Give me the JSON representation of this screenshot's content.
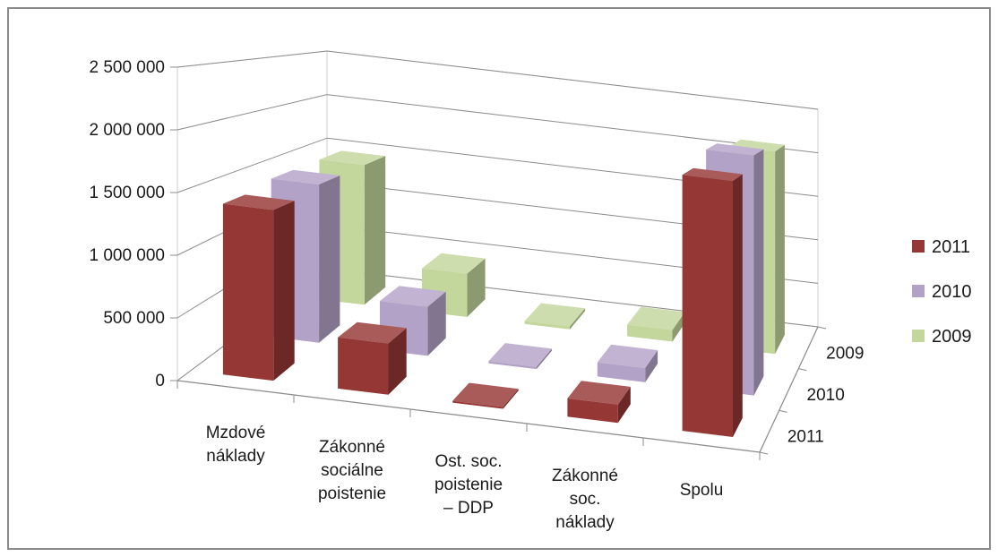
{
  "chart_data": {
    "type": "bar",
    "subtype": "3d-clustered",
    "title": "",
    "xlabel": "",
    "ylabel": "",
    "ylim": [
      0,
      2500000
    ],
    "yticks": [
      "0",
      "500 000",
      "1 000 000",
      "1 500 000",
      "2 000 000",
      "2 500 000"
    ],
    "grid": true,
    "legend_position": "right",
    "categories": [
      [
        "Mzdové",
        "náklady"
      ],
      [
        "Zákonné",
        "sociálne",
        "poistenie"
      ],
      [
        "Ost. soc.",
        "poistenie",
        "– DDP"
      ],
      [
        "Zákonné",
        "soc.",
        "náklady"
      ],
      [
        "Spolu"
      ]
    ],
    "depth_labels": [
      "2009",
      "2010",
      "2011"
    ],
    "series": [
      {
        "name": "2011",
        "color": "#953735",
        "values": [
          1400000,
          420000,
          15000,
          150000,
          2100000
        ]
      },
      {
        "name": "2010",
        "color": "#b3a2c7",
        "values": [
          1450000,
          450000,
          20000,
          130000,
          2200000
        ]
      },
      {
        "name": "2009",
        "color": "#c3d69b",
        "values": [
          1450000,
          450000,
          30000,
          120000,
          2100000
        ]
      }
    ]
  }
}
